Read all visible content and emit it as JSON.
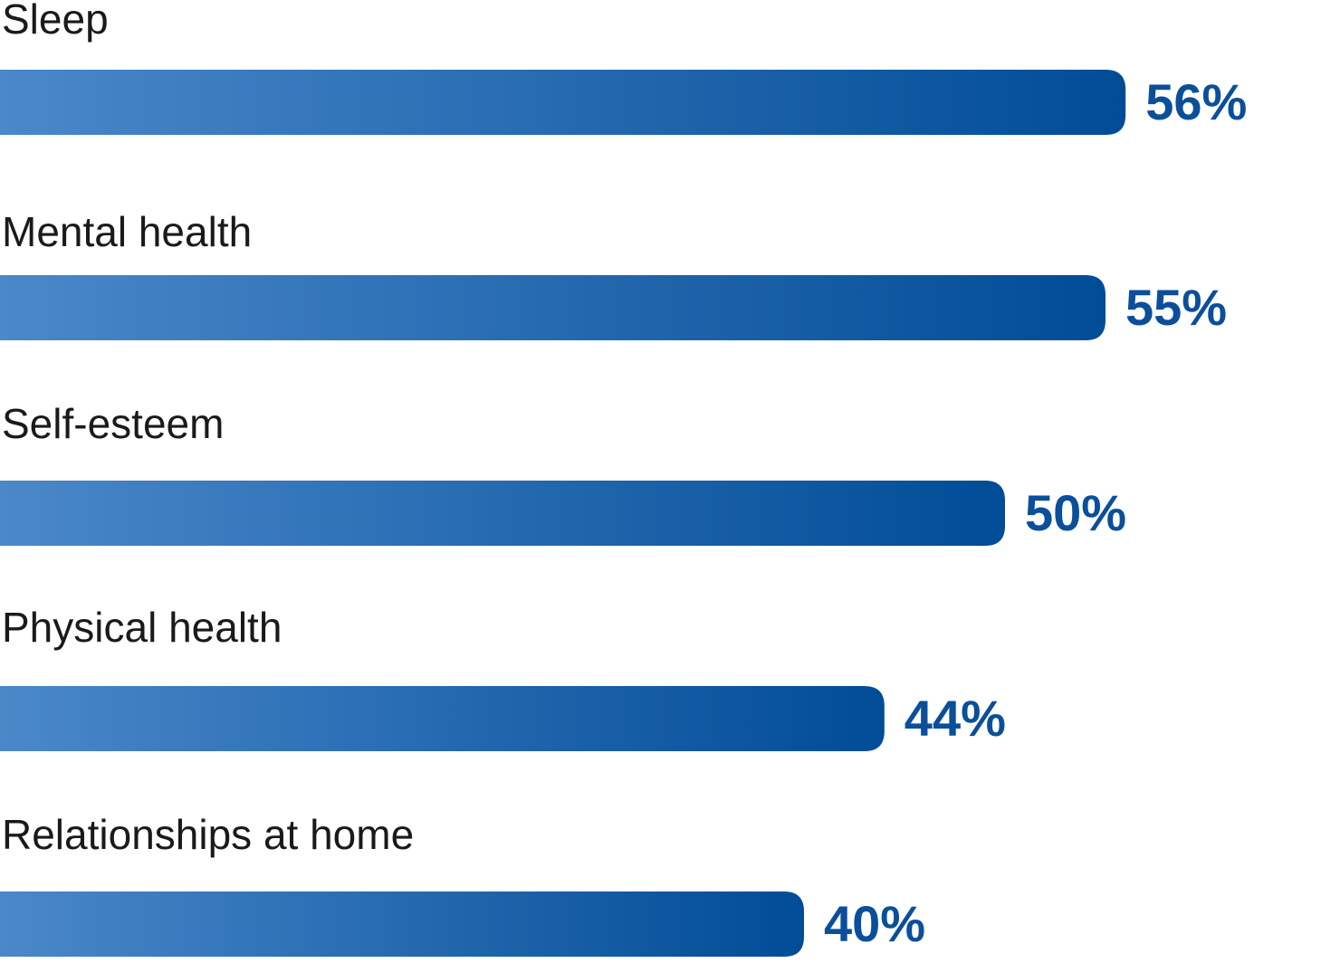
{
  "chart_data": {
    "type": "bar",
    "orientation": "horizontal",
    "categories": [
      "Sleep",
      "Mental health",
      "Self-esteem",
      "Physical health",
      "Relationships at home"
    ],
    "values": [
      56,
      55,
      50,
      44,
      40
    ],
    "value_labels": [
      "56%",
      "55%",
      "50%",
      "44%",
      "40%"
    ],
    "color": [
      "#4a88c9",
      "#014c97"
    ],
    "label_color": "#0b4f9b"
  }
}
